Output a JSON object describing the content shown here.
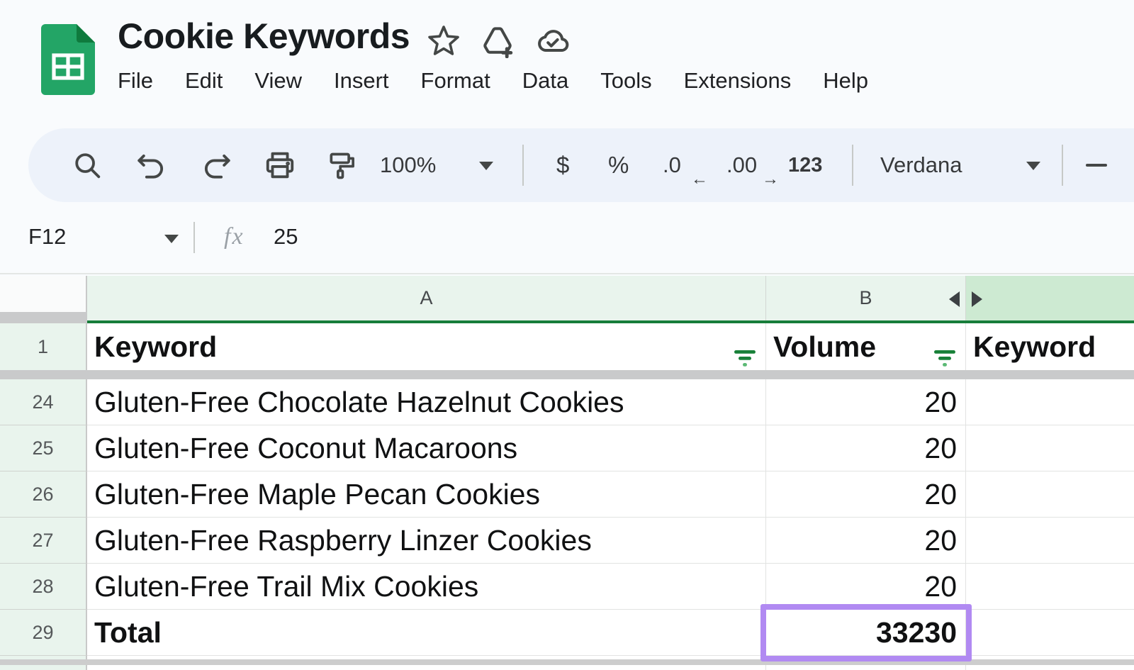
{
  "titlebar": {
    "title": "Cookie Keywords",
    "menu_items": [
      "File",
      "Edit",
      "View",
      "Insert",
      "Format",
      "Data",
      "Tools",
      "Extensions",
      "Help"
    ],
    "icons": [
      "sheets-logo",
      "star-outline",
      "move-to-drive",
      "cloud-saved"
    ]
  },
  "toolbar": {
    "icons_left": [
      "search",
      "undo",
      "redo",
      "print",
      "paint-format"
    ],
    "zoom_value": "100%",
    "format_buttons": {
      "currency": "$",
      "percent": "%",
      "decrease_decimal_main": ".0",
      "decrease_decimal_arrow": "←",
      "increase_decimal_main": ".00",
      "increase_decimal_arrow": "→",
      "more_formats": "123"
    },
    "font_name": "Verdana"
  },
  "formula_bar": {
    "name_box_value": "F12",
    "fx_label": "fx",
    "formula_value": "25"
  },
  "sheet": {
    "column_headers": {
      "a": "A",
      "b": "B"
    },
    "header_row": {
      "row_num": "1",
      "keyword_label": "Keyword",
      "volume_label": "Volume",
      "second_keyword_label": "Keyword"
    },
    "data_rows": [
      {
        "row_num": "24",
        "keyword": "Gluten-Free Chocolate Hazelnut Cookies",
        "volume": "20"
      },
      {
        "row_num": "25",
        "keyword": "Gluten-Free Coconut Macaroons",
        "volume": "20"
      },
      {
        "row_num": "26",
        "keyword": "Gluten-Free Maple Pecan Cookies",
        "volume": "20"
      },
      {
        "row_num": "27",
        "keyword": "Gluten-Free Raspberry Linzer Cookies",
        "volume": "20"
      },
      {
        "row_num": "28",
        "keyword": "Gluten-Free Trail Mix Cookies",
        "volume": "20"
      }
    ],
    "total_row": {
      "row_num": "29",
      "label": "Total",
      "value": "33230"
    }
  },
  "colors": {
    "app_bg": "#f9fbfd",
    "toolbar_bg": "#edf2fa",
    "header_green": "#e9f4ed",
    "selected_header_green": "#cdead2",
    "green_underline": "#177d3a",
    "filter_green": "#188038",
    "filter_green_light": "#5bb974",
    "freeze_gray": "#c9cacb",
    "grid_line": "#e2e3e2",
    "purple_highlight": "#b18af2"
  }
}
